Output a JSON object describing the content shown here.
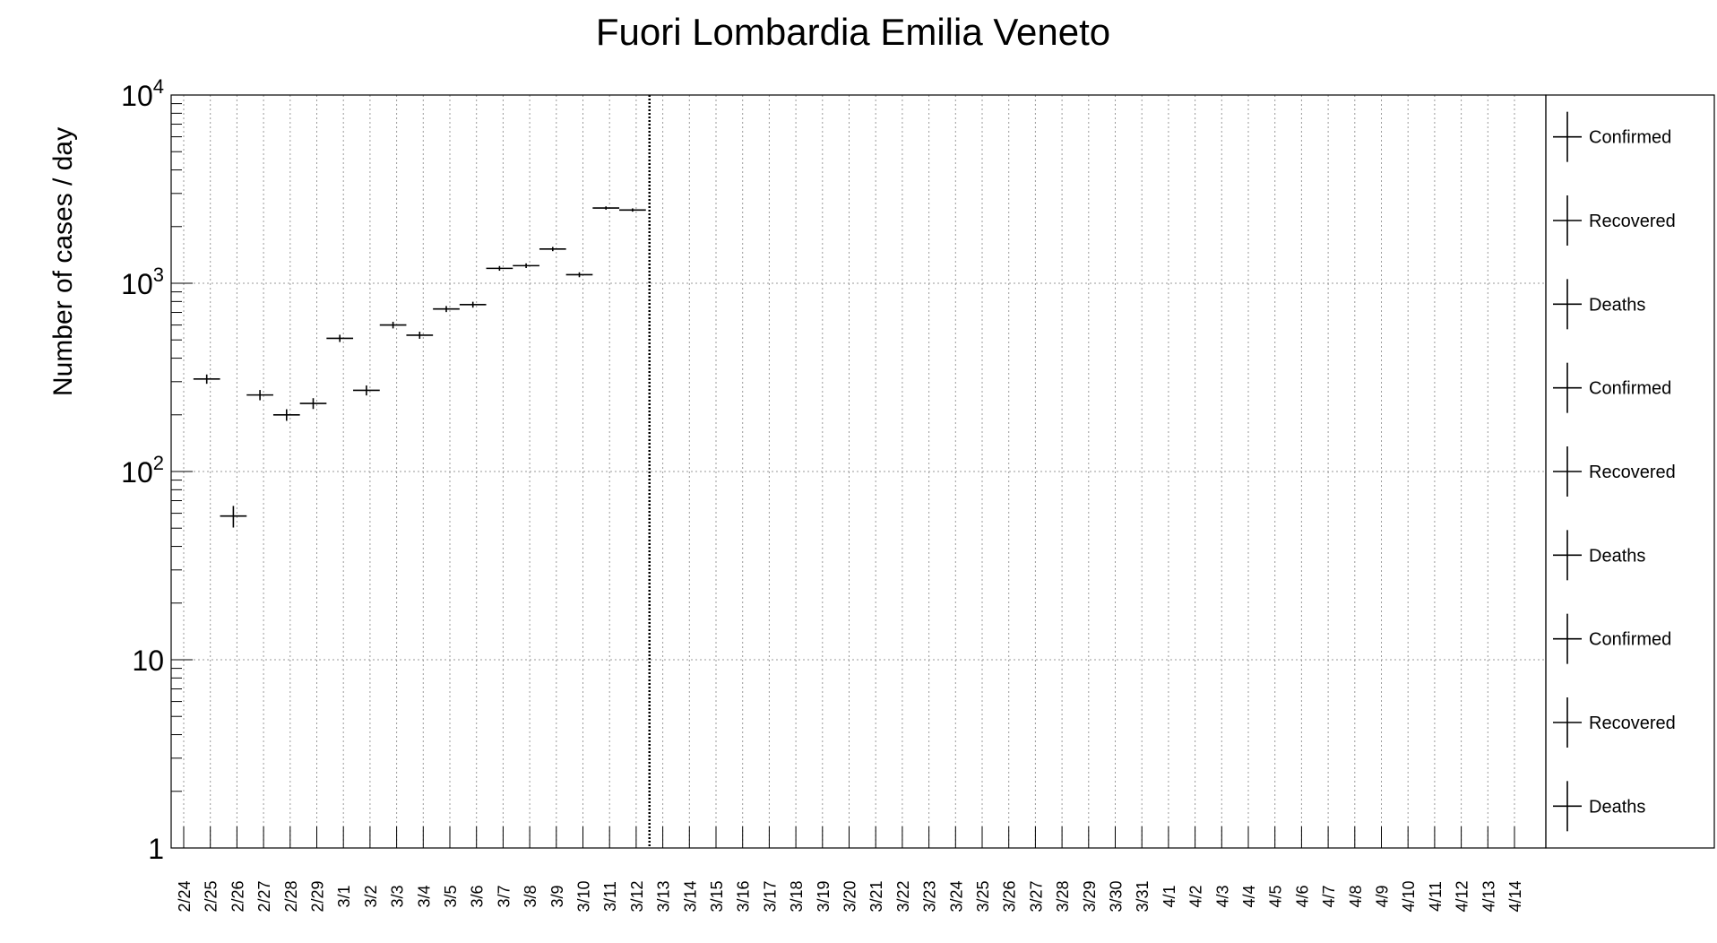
{
  "chart_data": {
    "type": "scatter",
    "title": "Fuori Lombardia Emilia Veneto",
    "xlabel": "",
    "ylabel": "Number of cases / day",
    "y_scale": "log",
    "ylim": [
      1,
      10000
    ],
    "grid": true,
    "legend_position": "right",
    "y_ticks": [
      {
        "value": 1,
        "base": "1",
        "exp": ""
      },
      {
        "value": 10,
        "base": "10",
        "exp": ""
      },
      {
        "value": 100,
        "base": "10",
        "exp": "2"
      },
      {
        "value": 1000,
        "base": "10",
        "exp": "3"
      },
      {
        "value": 10000,
        "base": "10",
        "exp": "4"
      }
    ],
    "categories": [
      "2/24",
      "2/25",
      "2/26",
      "2/27",
      "2/28",
      "2/29",
      "3/1",
      "3/2",
      "3/3",
      "3/4",
      "3/5",
      "3/6",
      "3/7",
      "3/8",
      "3/9",
      "3/10",
      "3/11",
      "3/12",
      "3/13",
      "3/14",
      "3/15",
      "3/16",
      "3/17",
      "3/18",
      "3/19",
      "3/20",
      "3/21",
      "3/22",
      "3/23",
      "3/24",
      "3/25",
      "3/26",
      "3/27",
      "3/28",
      "3/29",
      "3/30",
      "3/31",
      "4/1",
      "4/2",
      "4/3",
      "4/4",
      "4/5",
      "4/6",
      "4/7",
      "4/8",
      "4/9",
      "4/10",
      "4/11",
      "4/12",
      "4/13",
      "4/14"
    ],
    "marker_line": {
      "category": "3/13",
      "style": "dotted"
    },
    "series": [
      {
        "name": "Confirmed",
        "points": [
          {
            "x": "2/25",
            "y": 310
          },
          {
            "x": "2/26",
            "y": 58
          },
          {
            "x": "2/27",
            "y": 255
          },
          {
            "x": "2/28",
            "y": 200
          },
          {
            "x": "2/29",
            "y": 230
          },
          {
            "x": "3/1",
            "y": 510
          },
          {
            "x": "3/2",
            "y": 270
          },
          {
            "x": "3/3",
            "y": 600
          },
          {
            "x": "3/4",
            "y": 530
          },
          {
            "x": "3/5",
            "y": 730
          },
          {
            "x": "3/6",
            "y": 770
          },
          {
            "x": "3/7",
            "y": 1200
          },
          {
            "x": "3/8",
            "y": 1240
          },
          {
            "x": "3/9",
            "y": 1520
          },
          {
            "x": "3/10",
            "y": 1110
          },
          {
            "x": "3/11",
            "y": 2510
          },
          {
            "x": "3/12",
            "y": 2450
          }
        ]
      },
      {
        "name": "Recovered",
        "points": []
      },
      {
        "name": "Deaths",
        "points": []
      }
    ],
    "legend_entries": [
      "Confirmed",
      "Recovered",
      "Deaths",
      "Confirmed",
      "Recovered",
      "Deaths",
      "Confirmed",
      "Recovered",
      "Deaths"
    ]
  }
}
